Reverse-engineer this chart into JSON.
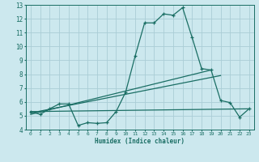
{
  "xlabel": "Humidex (Indice chaleur)",
  "ylabel": "",
  "bg_color": "#cce8ee",
  "grid_color": "#aacdd6",
  "line_color": "#1a6e64",
  "xlim": [
    -0.5,
    23.5
  ],
  "ylim": [
    4,
    13
  ],
  "yticks": [
    4,
    5,
    6,
    7,
    8,
    9,
    10,
    11,
    12,
    13
  ],
  "xticks": [
    0,
    1,
    2,
    3,
    4,
    5,
    6,
    7,
    8,
    9,
    10,
    11,
    12,
    13,
    14,
    15,
    16,
    17,
    18,
    19,
    20,
    21,
    22,
    23
  ],
  "main_x": [
    0,
    1,
    2,
    3,
    4,
    5,
    6,
    7,
    8,
    9,
    10,
    11,
    12,
    13,
    14,
    15,
    16,
    17,
    18,
    19,
    20,
    21,
    22,
    23
  ],
  "main_y": [
    5.3,
    5.1,
    5.5,
    5.85,
    5.85,
    4.3,
    4.5,
    4.45,
    4.5,
    5.3,
    6.7,
    9.3,
    11.7,
    11.7,
    12.35,
    12.25,
    12.8,
    10.65,
    8.4,
    8.3,
    6.1,
    5.95,
    4.9,
    5.5
  ],
  "trend1_x": [
    0,
    23
  ],
  "trend1_y": [
    5.3,
    5.5
  ],
  "trend2_x": [
    0,
    20
  ],
  "trend2_y": [
    5.2,
    7.9
  ],
  "trend3_x": [
    0,
    19
  ],
  "trend3_y": [
    5.1,
    8.3
  ]
}
